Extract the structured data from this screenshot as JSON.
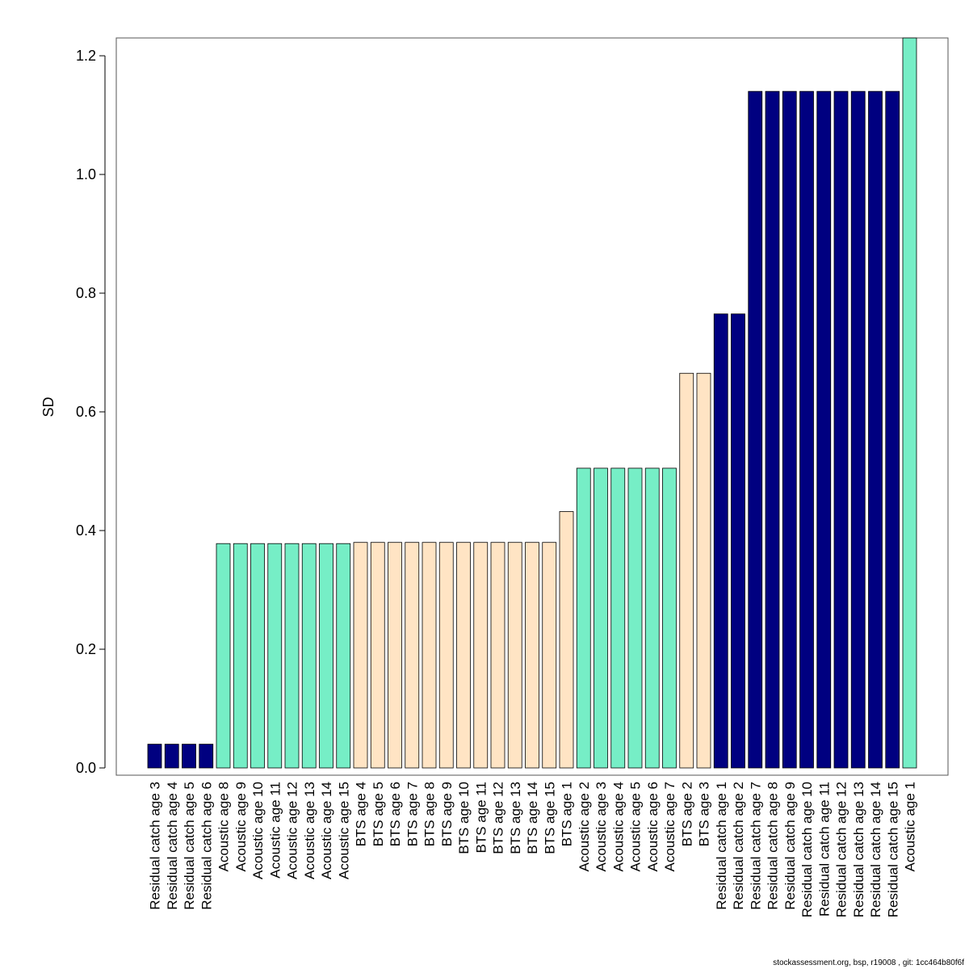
{
  "chart_data": {
    "type": "bar",
    "ylabel": "SD",
    "xlabel": "",
    "ylim": [
      0,
      1.23
    ],
    "yticks": [
      0.0,
      0.2,
      0.4,
      0.6,
      0.8,
      1.0,
      1.2
    ],
    "ytick_labels": [
      "0.0",
      "0.2",
      "0.4",
      "0.6",
      "0.8",
      "1.0",
      "1.2"
    ],
    "grid": false,
    "legend": "none",
    "colors": {
      "Residual catch": "#000080",
      "Acoustic": "#76EEC6",
      "BTS": "#FFE4C4",
      "outline": "#000000",
      "frame": "#555555"
    },
    "categories": [
      "Residual catch age 3",
      "Residual catch age 4",
      "Residual catch age 5",
      "Residual catch age 6",
      "Acoustic age 8",
      "Acoustic age 9",
      "Acoustic age 10",
      "Acoustic age 11",
      "Acoustic age 12",
      "Acoustic age 13",
      "Acoustic age 14",
      "Acoustic age 15",
      "BTS age 4",
      "BTS age 5",
      "BTS age 6",
      "BTS age 7",
      "BTS age 8",
      "BTS age 9",
      "BTS age 10",
      "BTS age 11",
      "BTS age 12",
      "BTS age 13",
      "BTS age 14",
      "BTS age 15",
      "BTS age 1",
      "Acoustic age 2",
      "Acoustic age 3",
      "Acoustic age 4",
      "Acoustic age 5",
      "Acoustic age 6",
      "Acoustic age 7",
      "BTS age 2",
      "BTS age 3",
      "Residual catch age 1",
      "Residual catch age 2",
      "Residual catch age 7",
      "Residual catch age 8",
      "Residual catch age 9",
      "Residual catch age 10",
      "Residual catch age 11",
      "Residual catch age 12",
      "Residual catch age 13",
      "Residual catch age 14",
      "Residual catch age 15",
      "Acoustic age 1"
    ],
    "groups": [
      "Residual catch",
      "Residual catch",
      "Residual catch",
      "Residual catch",
      "Acoustic",
      "Acoustic",
      "Acoustic",
      "Acoustic",
      "Acoustic",
      "Acoustic",
      "Acoustic",
      "Acoustic",
      "BTS",
      "BTS",
      "BTS",
      "BTS",
      "BTS",
      "BTS",
      "BTS",
      "BTS",
      "BTS",
      "BTS",
      "BTS",
      "BTS",
      "BTS",
      "Acoustic",
      "Acoustic",
      "Acoustic",
      "Acoustic",
      "Acoustic",
      "Acoustic",
      "BTS",
      "BTS",
      "Residual catch",
      "Residual catch",
      "Residual catch",
      "Residual catch",
      "Residual catch",
      "Residual catch",
      "Residual catch",
      "Residual catch",
      "Residual catch",
      "Residual catch",
      "Residual catch",
      "Acoustic"
    ],
    "values": [
      0.04,
      0.04,
      0.04,
      0.04,
      0.378,
      0.378,
      0.378,
      0.378,
      0.378,
      0.378,
      0.378,
      0.378,
      0.38,
      0.38,
      0.38,
      0.38,
      0.38,
      0.38,
      0.38,
      0.38,
      0.38,
      0.38,
      0.38,
      0.38,
      0.432,
      0.505,
      0.505,
      0.505,
      0.505,
      0.505,
      0.505,
      0.665,
      0.665,
      0.765,
      0.765,
      1.14,
      1.14,
      1.14,
      1.14,
      1.14,
      1.14,
      1.14,
      1.14,
      1.14,
      1.23
    ]
  },
  "footer": {
    "text": "stockassessment.org, bsp, r19008 , git: 1cc464b80f6f"
  }
}
